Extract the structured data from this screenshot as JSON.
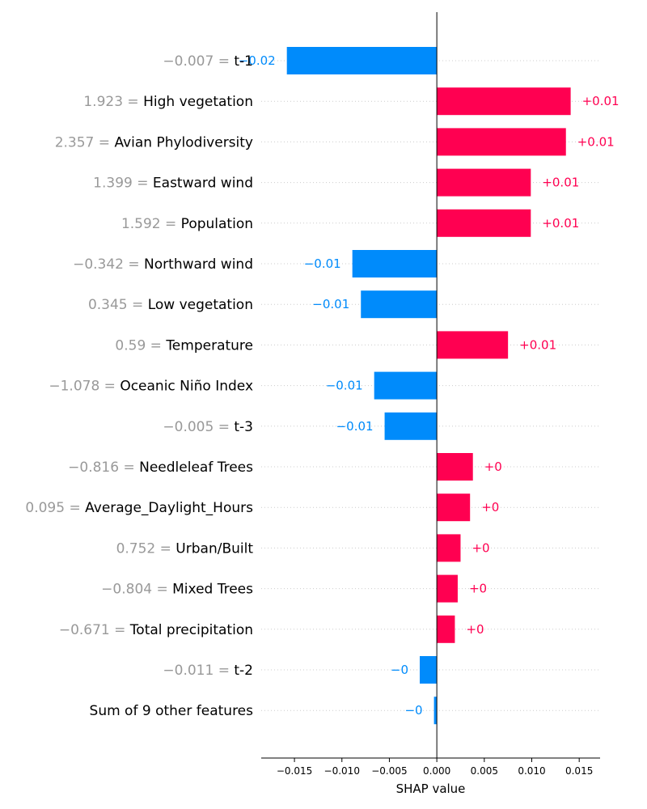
{
  "chart_data": {
    "type": "bar",
    "orientation": "horizontal",
    "xlabel": "SHAP value",
    "xlim": [
      -0.0185,
      0.0172
    ],
    "xticks": [
      -0.015,
      -0.01,
      -0.005,
      0.0,
      0.005,
      0.01,
      0.015
    ],
    "xtick_labels": [
      "−0.015",
      "−0.010",
      "−0.005",
      "0.000",
      "0.005",
      "0.010",
      "0.015"
    ],
    "colors": {
      "positive": "#ff0051",
      "negative": "#008bfb"
    },
    "features": [
      {
        "value": "−0.007",
        "name": "t-1",
        "shap": -0.0158,
        "label": "−0.02"
      },
      {
        "value": "1.923",
        "name": "High vegetation",
        "shap": 0.0141,
        "label": "+0.01"
      },
      {
        "value": "2.357",
        "name": "Avian Phylodiversity",
        "shap": 0.0136,
        "label": "+0.01"
      },
      {
        "value": "1.399",
        "name": "Eastward wind",
        "shap": 0.0099,
        "label": "+0.01"
      },
      {
        "value": "1.592",
        "name": "Population",
        "shap": 0.0099,
        "label": "+0.01"
      },
      {
        "value": "−0.342",
        "name": "Northward wind",
        "shap": -0.0089,
        "label": "−0.01"
      },
      {
        "value": "0.345",
        "name": "Low vegetation",
        "shap": -0.008,
        "label": "−0.01"
      },
      {
        "value": "0.59",
        "name": "Temperature",
        "shap": 0.0075,
        "label": "+0.01"
      },
      {
        "value": "−1.078",
        "name": "Oceanic Niño Index",
        "shap": -0.0066,
        "label": "−0.01"
      },
      {
        "value": "−0.005",
        "name": "t-3",
        "shap": -0.0055,
        "label": "−0.01"
      },
      {
        "value": "−0.816",
        "name": "Needleleaf Trees",
        "shap": 0.0038,
        "label": "+0"
      },
      {
        "value": "0.095",
        "name": "Average_Daylight_Hours",
        "shap": 0.0035,
        "label": "+0"
      },
      {
        "value": "0.752",
        "name": "Urban/Built",
        "shap": 0.0025,
        "label": "+0"
      },
      {
        "value": "−0.804",
        "name": "Mixed Trees",
        "shap": 0.0022,
        "label": "+0"
      },
      {
        "value": "−0.671",
        "name": "Total precipitation",
        "shap": 0.0019,
        "label": "+0"
      },
      {
        "value": "−0.011",
        "name": "t-2",
        "shap": -0.0018,
        "label": "−0"
      },
      {
        "value": "",
        "name": "Sum of 9 other features",
        "shap": -0.0003,
        "label": "−0"
      }
    ]
  }
}
